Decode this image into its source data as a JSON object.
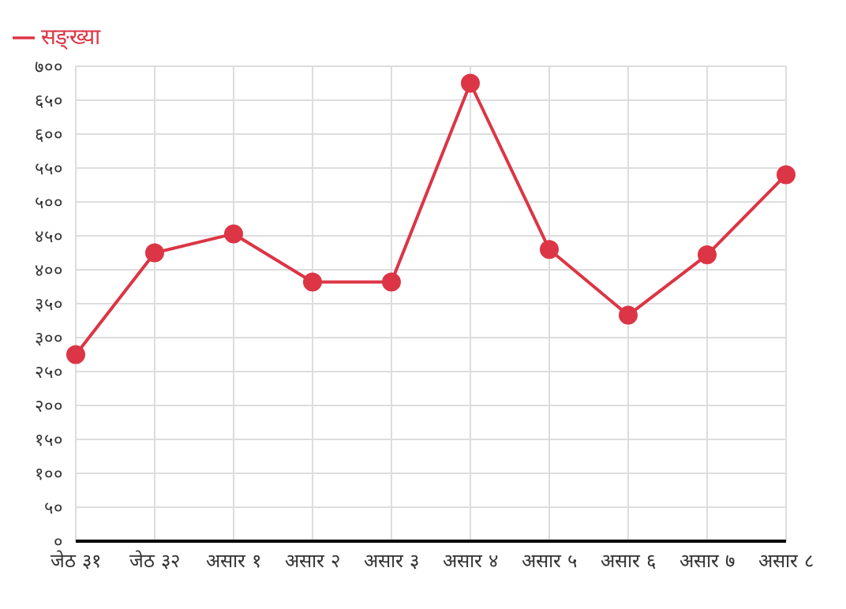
{
  "chart_data": {
    "type": "line",
    "categories": [
      "जेठ ३१",
      "जेठ ३२",
      "असार १",
      "असार २",
      "असार ३",
      "असार ४",
      "असार ५",
      "असार ६",
      "असार ७",
      "असार ८"
    ],
    "series": [
      {
        "name": "सङ्ख्या",
        "color": "#dc3545",
        "values": [
          275,
          425,
          453,
          382,
          382,
          675,
          430,
          333,
          422,
          540
        ]
      }
    ],
    "ylim": [
      0,
      700
    ],
    "yticks": [
      {
        "value": 0,
        "label": "०"
      },
      {
        "value": 50,
        "label": "५०"
      },
      {
        "value": 100,
        "label": "१००"
      },
      {
        "value": 150,
        "label": "१५०"
      },
      {
        "value": 200,
        "label": "२००"
      },
      {
        "value": 250,
        "label": "२५०"
      },
      {
        "value": 300,
        "label": "३००"
      },
      {
        "value": 350,
        "label": "३५०"
      },
      {
        "value": 400,
        "label": "४००"
      },
      {
        "value": 450,
        "label": "४५०"
      },
      {
        "value": 500,
        "label": "५००"
      },
      {
        "value": 550,
        "label": "५५०"
      },
      {
        "value": 600,
        "label": "६००"
      },
      {
        "value": 650,
        "label": "६५०"
      },
      {
        "value": 700,
        "label": "७००"
      }
    ],
    "grid": true,
    "legend": "top left",
    "marker": "circle",
    "line_style": "solid"
  }
}
